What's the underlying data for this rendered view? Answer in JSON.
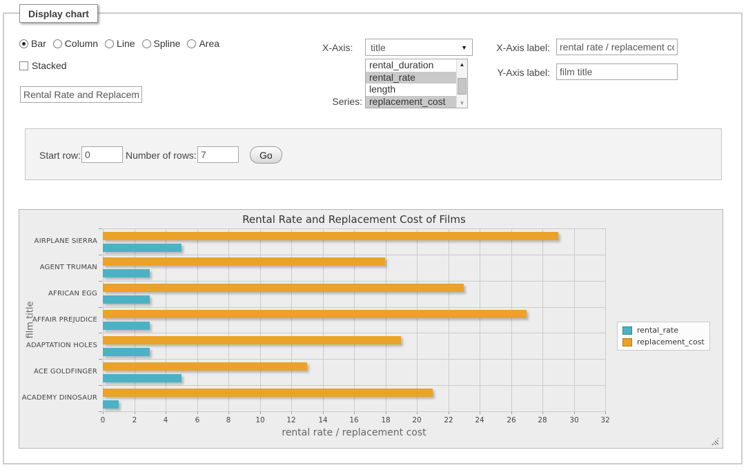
{
  "window": {
    "fieldset_legend": "Display chart"
  },
  "chart_type_options": [
    {
      "label": "Bar",
      "selected": true
    },
    {
      "label": "Column",
      "selected": false
    },
    {
      "label": "Line",
      "selected": false
    },
    {
      "label": "Spline",
      "selected": false
    },
    {
      "label": "Area",
      "selected": false
    }
  ],
  "stacked": {
    "label": "Stacked",
    "checked": false
  },
  "chart_title_input": {
    "value": "Rental Rate and Replacement Cost of Films"
  },
  "x_axis_select": {
    "label": "X-Axis:",
    "value": "title"
  },
  "series_select": {
    "label": "Series:",
    "options": [
      {
        "label": "rental_duration",
        "selected": false
      },
      {
        "label": "rental_rate",
        "selected": true
      },
      {
        "label": "length",
        "selected": false
      },
      {
        "label": "replacement_cost",
        "selected": true
      }
    ]
  },
  "x_axis_label_input": {
    "label": "X-Axis label:",
    "value": "rental rate / replacement cost"
  },
  "y_axis_label_input": {
    "label": "Y-Axis label:",
    "value": "film title"
  },
  "row_controls": {
    "start_row_label": "Start row:",
    "start_row_value": "0",
    "rows_label": "Number of rows:",
    "rows_value": "7",
    "go_label": "Go"
  },
  "icons": {
    "dropdown_arrow": "▼",
    "scroll_up": "▲",
    "scroll_down": "▼"
  },
  "colors": {
    "series_rental_rate": "#4bb2c5",
    "series_replacement_cost": "#eaa228",
    "selected_option_bg": "#c9c9c9",
    "chart_panel_bg": "#ededed",
    "gridline": "#cbcbcb"
  },
  "chart_data": {
    "type": "bar",
    "orientation": "horizontal",
    "title": "Rental Rate and Replacement Cost of Films",
    "xlabel": "rental rate / replacement cost",
    "ylabel": "film title",
    "categories": [
      "AIRPLANE SIERRA",
      "AGENT TRUMAN",
      "AFRICAN EGG",
      "AFFAIR PREJUDICE",
      "ADAPTATION HOLES",
      "ACE GOLDFINGER",
      "ACADEMY DINOSAUR"
    ],
    "series": [
      {
        "name": "rental_rate",
        "color": "#4bb2c5",
        "values": [
          4.99,
          2.99,
          2.99,
          2.99,
          2.99,
          4.99,
          0.99
        ]
      },
      {
        "name": "replacement_cost",
        "color": "#eaa228",
        "values": [
          28.99,
          17.99,
          22.99,
          26.99,
          18.99,
          12.99,
          20.99
        ]
      }
    ],
    "bar_order_top_to_bottom": [
      "replacement_cost",
      "rental_rate"
    ],
    "xlim": [
      0,
      32
    ],
    "xticks": [
      0,
      2,
      4,
      6,
      8,
      10,
      12,
      14,
      16,
      18,
      20,
      22,
      24,
      26,
      28,
      30,
      32
    ],
    "grid": true,
    "legend_position": "right"
  }
}
